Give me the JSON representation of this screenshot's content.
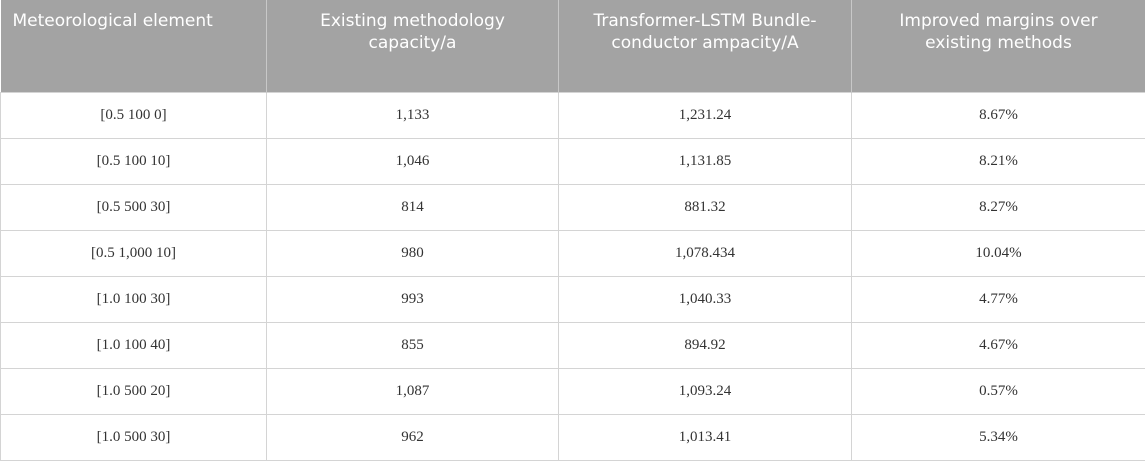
{
  "table": {
    "header": [
      "Meteorological element",
      "Existing methodology capacity/a",
      "Transformer-LSTM Bundle-conductor ampacity/A",
      "Improved margins over existing methods"
    ],
    "rows": [
      [
        "[0.5 100 0]",
        "1,133",
        "1,231.24",
        "8.67%"
      ],
      [
        "[0.5 100 10]",
        "1,046",
        "1,131.85",
        "8.21%"
      ],
      [
        "[0.5 500 30]",
        "814",
        "881.32",
        "8.27%"
      ],
      [
        "[0.5 1,000 10]",
        "980",
        "1,078.434",
        "10.04%"
      ],
      [
        "[1.0 100 30]",
        "993",
        "1,040.33",
        "4.77%"
      ],
      [
        "[1.0 100 40]",
        "855",
        "894.92",
        "4.67%"
      ],
      [
        "[1.0 500 20]",
        "1,087",
        "1,093.24",
        "0.57%"
      ],
      [
        "[1.0 500 30]",
        "962",
        "1,013.41",
        "5.34%"
      ]
    ]
  }
}
